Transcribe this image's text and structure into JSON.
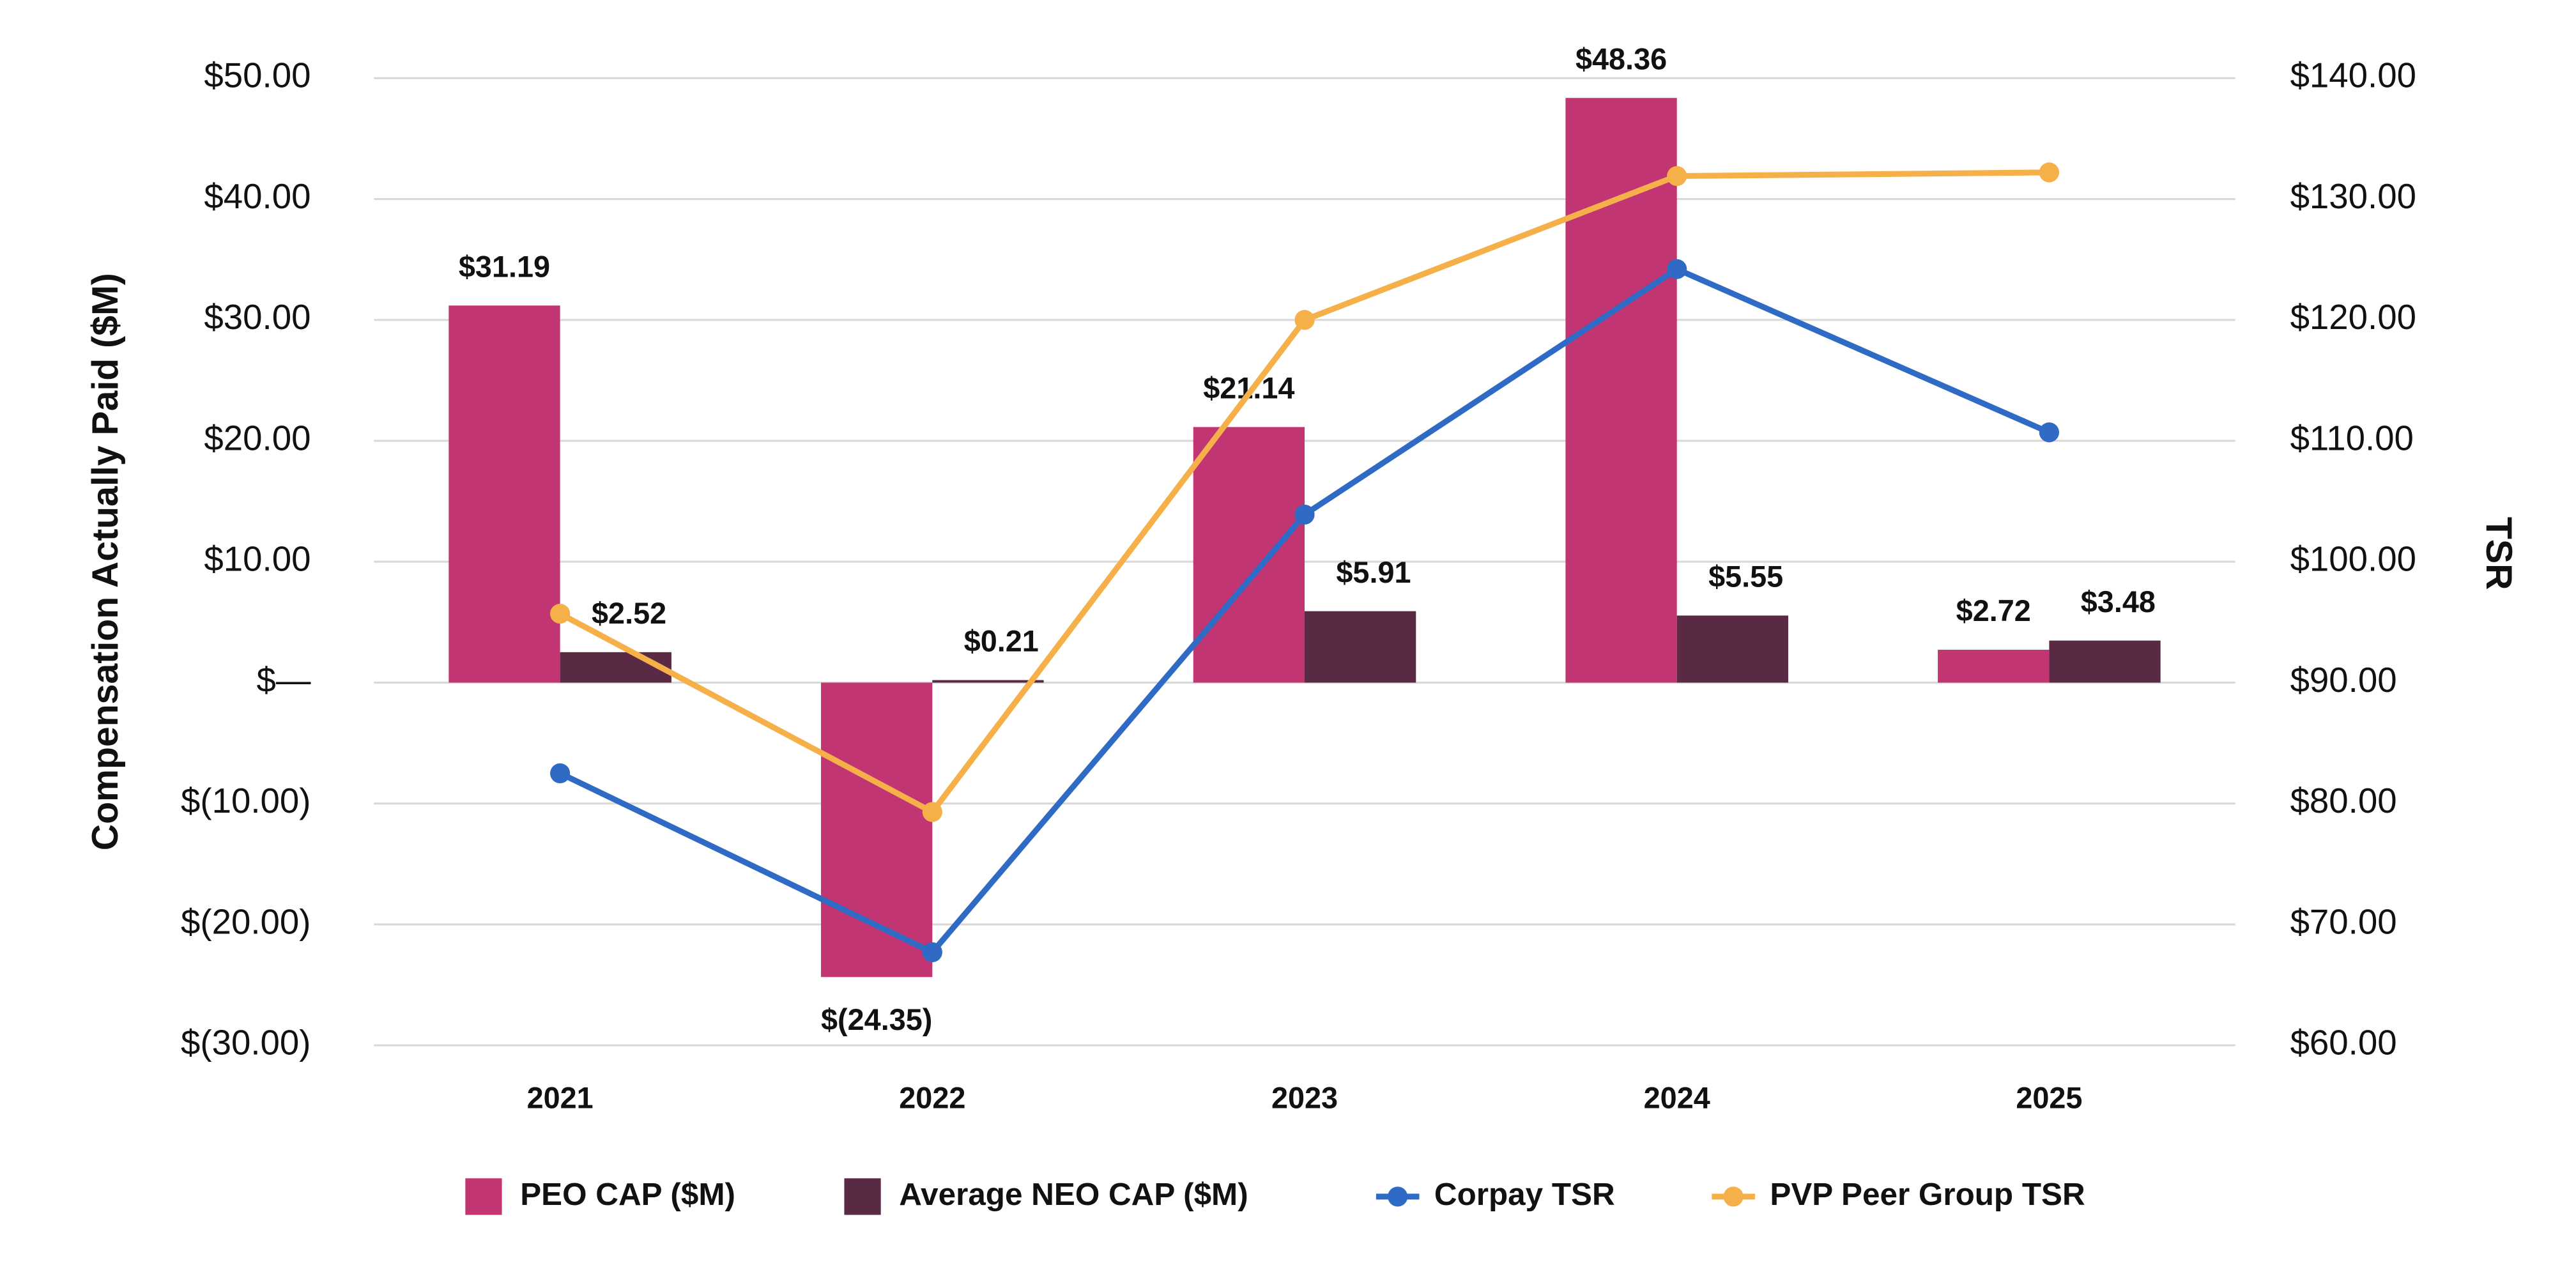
{
  "chart_data": {
    "type": "bar",
    "categories": [
      "2021",
      "2022",
      "2023",
      "2024",
      "2025"
    ],
    "y_label": "Compensation Actually Paid ($M)",
    "y2_label": "TSR",
    "ylim": [
      -30,
      50
    ],
    "yticks": [
      {
        "value": 50,
        "label": "$50.00"
      },
      {
        "value": 40,
        "label": "$40.00"
      },
      {
        "value": 30,
        "label": "$30.00"
      },
      {
        "value": 20,
        "label": "$20.00"
      },
      {
        "value": 10,
        "label": "$10.00"
      },
      {
        "value": 0,
        "label": "$—"
      },
      {
        "value": -10,
        "label": "$(10.00)"
      },
      {
        "value": -20,
        "label": "$(20.00)"
      },
      {
        "value": -30,
        "label": "$(30.00)"
      }
    ],
    "y2lim": [
      60,
      140
    ],
    "y2ticks": [
      {
        "value": 140,
        "label": "$140.00"
      },
      {
        "value": 130,
        "label": "$130.00"
      },
      {
        "value": 120,
        "label": "$120.00"
      },
      {
        "value": 110,
        "label": "$110.00"
      },
      {
        "value": 100,
        "label": "$100.00"
      },
      {
        "value": 90,
        "label": "$90.00"
      },
      {
        "value": 80,
        "label": "$80.00"
      },
      {
        "value": 70,
        "label": "$70.00"
      },
      {
        "value": 60,
        "label": "$60.00"
      }
    ],
    "grid": true,
    "legend": "bottom",
    "series": [
      {
        "name": "PEO CAP ($M)",
        "type": "bar",
        "color": "#c13672",
        "values": [
          31.19,
          -24.35,
          21.14,
          48.36,
          2.72
        ],
        "value_labels": [
          "$31.19",
          "$(24.35)",
          "$21.14",
          "$48.36",
          "$2.72"
        ]
      },
      {
        "name": "Average NEO CAP ($M)",
        "type": "bar",
        "color": "#5a2a45",
        "values": [
          2.52,
          0.21,
          5.91,
          5.55,
          3.48
        ],
        "value_labels": [
          "$2.52",
          "$0.21",
          "$5.91",
          "$5.55",
          "$3.48"
        ]
      },
      {
        "name": "Corpay TSR",
        "type": "line",
        "axis": "y2",
        "color": "#2f6bc4",
        "values": [
          82.5,
          67.7,
          103.9,
          124.2,
          110.7
        ]
      },
      {
        "name": "PVP Peer Group TSR",
        "type": "line",
        "axis": "y2",
        "color": "#f6b04a",
        "values": [
          95.7,
          79.3,
          120.0,
          131.9,
          132.2
        ]
      }
    ]
  }
}
